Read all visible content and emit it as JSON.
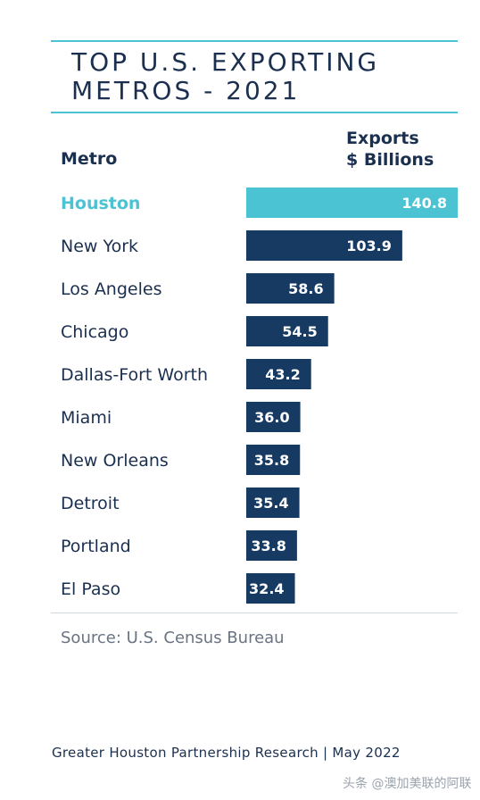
{
  "title": "TOP U.S. EXPORTING\nMETROS - 2021",
  "header": {
    "metro": "Metro",
    "exports": "Exports\n$ Billions"
  },
  "colors": {
    "accent": "#4cc3d3",
    "bar": "#173a63",
    "text": "#1b2f4f"
  },
  "chart_data": {
    "type": "bar",
    "orientation": "horizontal",
    "title": "TOP U.S. EXPORTING METROS - 2021",
    "xlabel": "Exports $ Billions",
    "ylabel": "Metro",
    "categories": [
      "Houston",
      "New York",
      "Los Angeles",
      "Chicago",
      "Dallas-Fort Worth",
      "Miami",
      "New Orleans",
      "Detroit",
      "Portland",
      "El Paso"
    ],
    "values": [
      140.8,
      103.9,
      58.6,
      54.5,
      43.2,
      36.0,
      35.8,
      35.4,
      33.8,
      32.4
    ],
    "value_labels": [
      "140.8",
      "103.9",
      "58.6",
      "54.5",
      "43.2",
      "36.0",
      "35.8",
      "35.4",
      "33.8",
      "32.4"
    ],
    "highlight": "Houston",
    "grid": false,
    "legend": "none"
  },
  "source": "Source: U.S. Census Bureau",
  "footer": "Greater Houston Partnership Research  |  May 2022",
  "watermark": "头条 @澳加美联的阿联"
}
